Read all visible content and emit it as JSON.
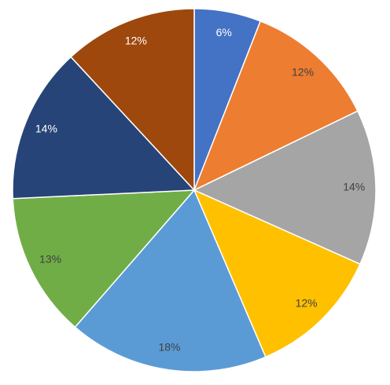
{
  "chart_data": {
    "type": "pie",
    "values": [
      6,
      12,
      14,
      12,
      18,
      13,
      14,
      12
    ],
    "value_labels": [
      "6%",
      "12%",
      "14%",
      "12%",
      "18%",
      "13%",
      "14%",
      "12%"
    ],
    "colors": [
      "#4472c4",
      "#ed7d31",
      "#a5a5a5",
      "#ffc000",
      "#5b9bd5",
      "#70ad47",
      "#264478",
      "#9e480e"
    ],
    "label_colors": [
      "#ffffff",
      "#404040",
      "#404040",
      "#404040",
      "#404040",
      "#404040",
      "#ffffff",
      "#ffffff"
    ]
  }
}
